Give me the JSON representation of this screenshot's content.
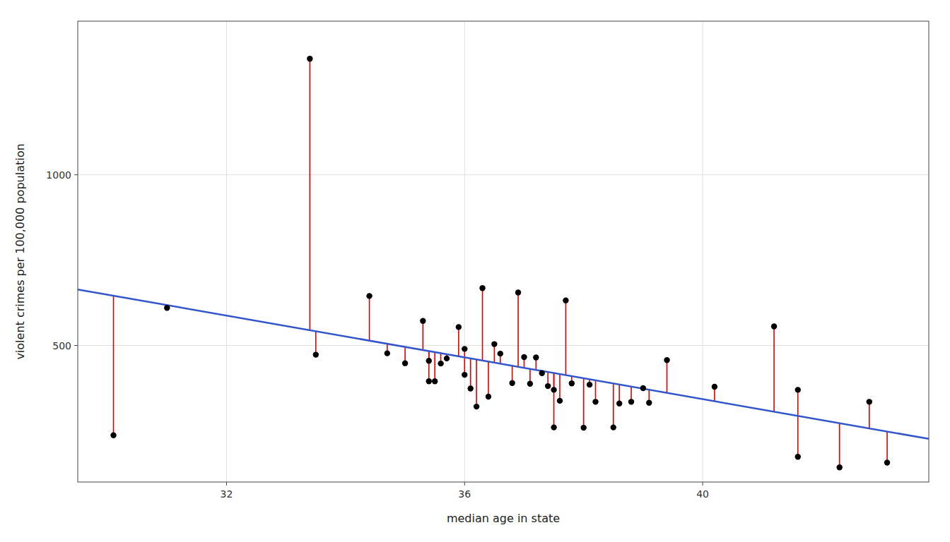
{
  "chart_data": {
    "type": "scatter",
    "xlabel": "median age in state",
    "ylabel": "violent crimes per 100,000 population",
    "xlim": [
      29.5,
      43.8
    ],
    "ylim": [
      100,
      1450
    ],
    "xticks": [
      32,
      36,
      40
    ],
    "yticks": [
      500,
      1000
    ],
    "grid": true,
    "series": [
      {
        "type": "scatter",
        "color": "#000000",
        "x": [
          30.1,
          31.0,
          33.4,
          33.5,
          34.4,
          34.7,
          35.0,
          35.3,
          35.4,
          35.4,
          35.5,
          35.6,
          35.7,
          35.9,
          36.0,
          36.0,
          36.1,
          36.2,
          36.3,
          36.4,
          36.5,
          36.6,
          36.8,
          36.9,
          37.0,
          37.1,
          37.2,
          37.3,
          37.4,
          37.5,
          37.5,
          37.6,
          37.7,
          37.8,
          38.0,
          38.1,
          38.2,
          38.5,
          38.6,
          38.8,
          39.0,
          39.1,
          39.4,
          40.2,
          41.2,
          41.6,
          41.6,
          42.3,
          42.8,
          43.1
        ],
        "values": [
          237,
          610,
          1340,
          473,
          645,
          477,
          448,
          572,
          455,
          395,
          395,
          447,
          462,
          554,
          490,
          414,
          374,
          321,
          668,
          350,
          504,
          476,
          390,
          655,
          466,
          388,
          465,
          419,
          381,
          260,
          370,
          338,
          632,
          389,
          259,
          385,
          335,
          260,
          330,
          335,
          375,
          332,
          457,
          379,
          556,
          370,
          174,
          143,
          335,
          157
        ]
      },
      {
        "type": "line",
        "color": "#3355cc",
        "x": [
          29.5,
          43.8
        ],
        "values": [
          664.06,
          226.43
        ]
      },
      {
        "type": "residual",
        "color": "#dd0000",
        "values": [
          645.69,
          618.15,
          544.7,
          541.64,
          514.1,
          504.92,
          495.74,
          486.56,
          483.5,
          483.5,
          480.44,
          477.38,
          474.32,
          468.2,
          465.14,
          465.14,
          462.08,
          459.01,
          455.95,
          452.89,
          449.83,
          446.77,
          440.65,
          437.59,
          434.53,
          431.47,
          428.41,
          425.35,
          422.29,
          419.23,
          419.23,
          416.17,
          413.11,
          410.05,
          403.93,
          400.87,
          397.81,
          388.63,
          385.57,
          379.45,
          373.33,
          370.27,
          361.08,
          336.6,
          306.0,
          293.76,
          293.76,
          272.33,
          257.03,
          247.85
        ]
      }
    ]
  }
}
